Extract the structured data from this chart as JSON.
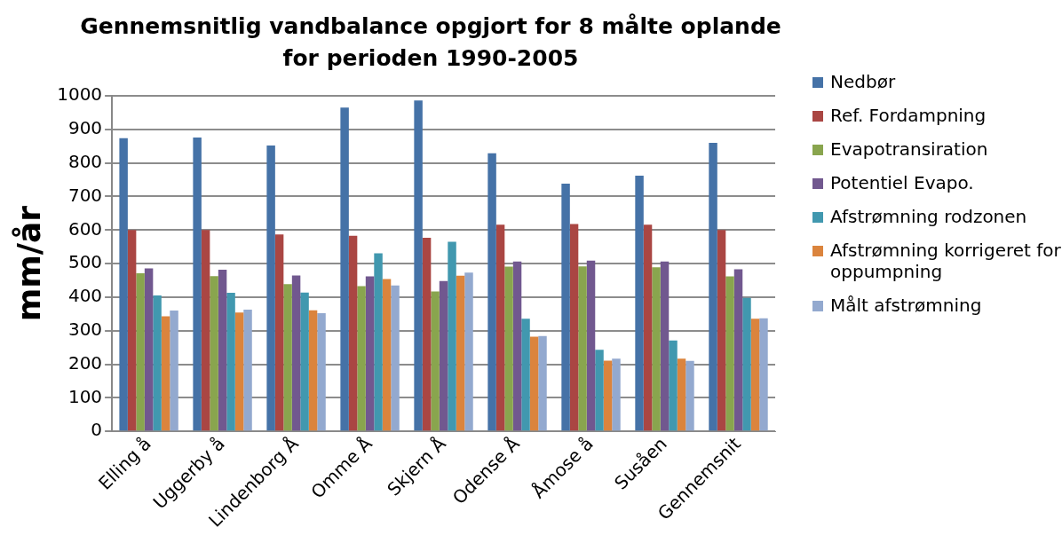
{
  "chart_data": {
    "type": "bar",
    "title": "Gennemsnitlig vandbalance opgjort for 8 målte oplande for perioden 1990-2005",
    "ylabel": "mm/år",
    "categories": [
      "Elling å",
      "Uggerby å",
      "Lindenborg Å",
      "Omme Å",
      "Skjern Å",
      "Odense Å",
      "Åmose å",
      "Susåen",
      "Gennemsnit"
    ],
    "series": [
      {
        "name": "Nedbør",
        "color": "#4572a7",
        "values": [
          874,
          876,
          852,
          965,
          986,
          829,
          738,
          762,
          860
        ]
      },
      {
        "name": "Ref. Fordampning",
        "color": "#aa4643",
        "values": [
          600,
          600,
          587,
          583,
          577,
          616,
          618,
          616,
          600
        ]
      },
      {
        "name": "Evapotransiration",
        "color": "#89a54e",
        "values": [
          471,
          463,
          439,
          433,
          417,
          491,
          492,
          489,
          462
        ]
      },
      {
        "name": "Potentiel Evapo.",
        "color": "#71588f",
        "values": [
          486,
          482,
          465,
          462,
          448,
          506,
          509,
          506,
          483
        ]
      },
      {
        "name": "Afstrømning rodzonen",
        "color": "#4198af",
        "values": [
          405,
          413,
          414,
          531,
          565,
          336,
          243,
          271,
          398
        ]
      },
      {
        "name": "Afstrømning korrigeret for oppumpning",
        "color": "#db843d",
        "values": [
          343,
          354,
          361,
          454,
          464,
          282,
          211,
          217,
          336
        ]
      },
      {
        "name": "Målt afstrømning",
        "color": "#93a9cf",
        "values": [
          360,
          363,
          352,
          435,
          473,
          284,
          217,
          210,
          337
        ]
      }
    ],
    "ylim": [
      0,
      1000
    ],
    "yticks": [
      0,
      100,
      200,
      300,
      400,
      500,
      600,
      700,
      800,
      900,
      1000
    ],
    "grid": "y",
    "legend": "right"
  }
}
